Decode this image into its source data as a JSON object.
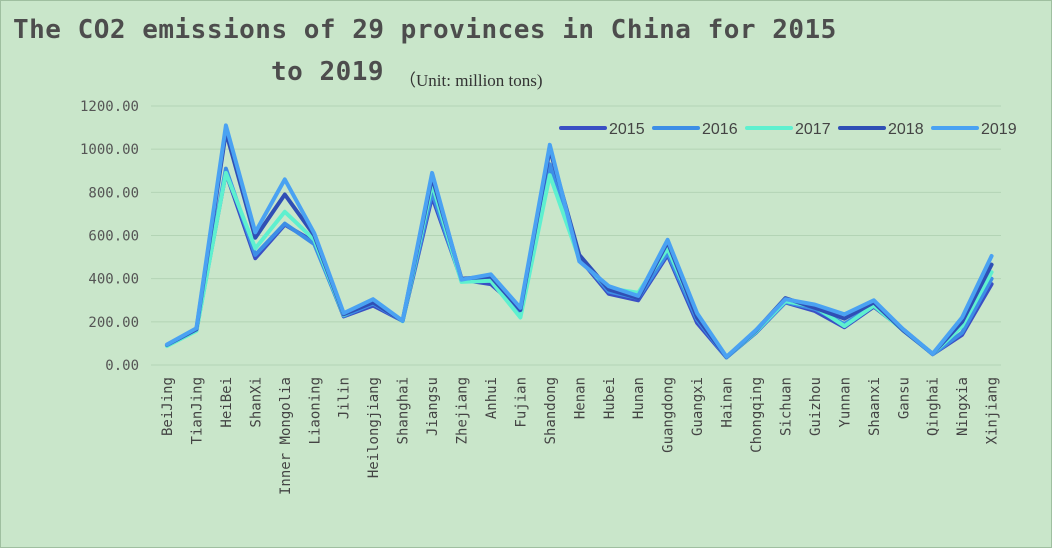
{
  "title_line1": "The CO2 emissions of 29 provinces in China for 2015",
  "title_line2": "to 2019",
  "unit": "（Unit: million tons)",
  "chart_data": {
    "type": "line",
    "title": "The CO2 emissions of 29 provinces in China for 2015 to 2019",
    "subtitle": "（Unit: million tons)",
    "xlabel": "",
    "ylabel": "",
    "ylim": [
      0,
      1200
    ],
    "yticks": [
      "0.00",
      "200.00",
      "400.00",
      "600.00",
      "800.00",
      "1000.00",
      "1200.00"
    ],
    "grid": true,
    "legend_position": "top-right",
    "categories": [
      "BeiJing",
      "TianJing",
      "HeiBei",
      "ShanXi",
      "Inner Mongolia",
      "Liaoning",
      "Jilin",
      "Heilongjiang",
      "Shanghai",
      "Jiangsu",
      "Zhejiang",
      "Anhui",
      "Fujian",
      "Shandong",
      "Henan",
      "Hubei",
      "Hunan",
      "Guangdong",
      "Guangxi",
      "Hainan",
      "Chongqing",
      "Sichuan",
      "Guizhou",
      "Yunnan",
      "Shaanxi",
      "Gansu",
      "Qinghai",
      "Ningxia",
      "Xinjiang"
    ],
    "series": [
      {
        "name": "2015",
        "color": "#3a4fc4",
        "values": [
          92,
          165,
          890,
          495,
          650,
          570,
          225,
          275,
          205,
          780,
          395,
          375,
          255,
          920,
          495,
          330,
          300,
          510,
          195,
          35,
          150,
          290,
          250,
          175,
          270,
          165,
          50,
          140,
          375
        ]
      },
      {
        "name": "2016",
        "color": "#3d8ee6",
        "values": [
          90,
          160,
          910,
          510,
          655,
          560,
          228,
          285,
          205,
          800,
          390,
          395,
          245,
          930,
          500,
          340,
          310,
          520,
          210,
          35,
          152,
          292,
          260,
          190,
          275,
          163,
          50,
          150,
          400
        ]
      },
      {
        "name": "2017",
        "color": "#5ef0cf",
        "values": [
          88,
          158,
          890,
          540,
          710,
          580,
          232,
          300,
          203,
          840,
          385,
          390,
          220,
          880,
          490,
          355,
          335,
          540,
          230,
          37,
          155,
          296,
          270,
          180,
          275,
          160,
          52,
          180,
          430
        ]
      },
      {
        "name": "2018",
        "color": "#2f4fb5",
        "values": [
          93,
          165,
          1080,
          590,
          790,
          600,
          235,
          290,
          205,
          870,
          400,
          410,
          255,
          1000,
          510,
          350,
          310,
          570,
          220,
          37,
          160,
          310,
          265,
          215,
          290,
          160,
          52,
          200,
          465
        ]
      },
      {
        "name": "2019",
        "color": "#4aa2f2",
        "values": [
          95,
          170,
          1110,
          615,
          860,
          610,
          240,
          305,
          205,
          890,
          395,
          420,
          265,
          1020,
          480,
          365,
          320,
          580,
          240,
          38,
          162,
          305,
          280,
          235,
          300,
          165,
          52,
          220,
          505
        ]
      }
    ]
  }
}
